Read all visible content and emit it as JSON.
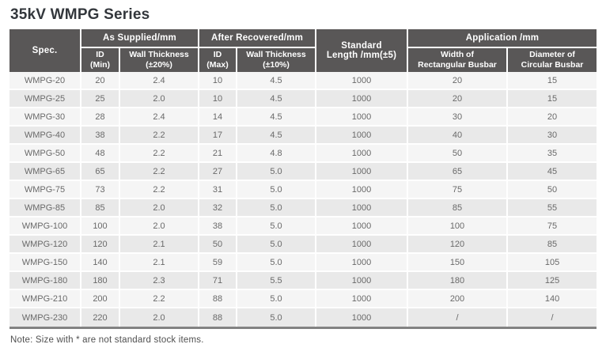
{
  "title": "35kV WMPG Series",
  "note": "Note: Size with * are not standard stock items.",
  "colors": {
    "header_bg": "#595757",
    "header_text": "#ffffff",
    "row_light": "#f5f5f5",
    "row_alt": "#e9e9e9",
    "bottom_border": "#828282",
    "body_text": "#696969",
    "title_text": "#33373c"
  },
  "table": {
    "spec_header": "Spec.",
    "groups": [
      {
        "label": "As Supplied/mm"
      },
      {
        "label": "After Recovered/mm"
      },
      {
        "label": "Standard\nLength /mm(±5)"
      },
      {
        "label": "Application /mm"
      }
    ],
    "subheaders": [
      "ID\n(Min)",
      "Wall Thickness\n(±20%)",
      "ID\n(Max)",
      "Wall Thickness\n(±10%)",
      "Width of\nRectangular Busbar",
      "Diameter of\nCircular Busbar"
    ],
    "rows": [
      [
        "WMPG-20",
        "20",
        "2.4",
        "10",
        "4.5",
        "1000",
        "20",
        "15"
      ],
      [
        "WMPG-25",
        "25",
        "2.0",
        "10",
        "4.5",
        "1000",
        "20",
        "15"
      ],
      [
        "WMPG-30",
        "28",
        "2.4",
        "14",
        "4.5",
        "1000",
        "30",
        "20"
      ],
      [
        "WMPG-40",
        "38",
        "2.2",
        "17",
        "4.5",
        "1000",
        "40",
        "30"
      ],
      [
        "WMPG-50",
        "48",
        "2.2",
        "21",
        "4.8",
        "1000",
        "50",
        "35"
      ],
      [
        "WMPG-65",
        "65",
        "2.2",
        "27",
        "5.0",
        "1000",
        "65",
        "45"
      ],
      [
        "WMPG-75",
        "73",
        "2.2",
        "31",
        "5.0",
        "1000",
        "75",
        "50"
      ],
      [
        "WMPG-85",
        "85",
        "2.0",
        "32",
        "5.0",
        "1000",
        "85",
        "55"
      ],
      [
        "WMPG-100",
        "100",
        "2.0",
        "38",
        "5.0",
        "1000",
        "100",
        "75"
      ],
      [
        "WMPG-120",
        "120",
        "2.1",
        "50",
        "5.0",
        "1000",
        "120",
        "85"
      ],
      [
        "WMPG-150",
        "140",
        "2.1",
        "59",
        "5.0",
        "1000",
        "150",
        "105"
      ],
      [
        "WMPG-180",
        "180",
        "2.3",
        "71",
        "5.5",
        "1000",
        "180",
        "125"
      ],
      [
        "WMPG-210",
        "200",
        "2.2",
        "88",
        "5.0",
        "1000",
        "200",
        "140"
      ],
      [
        "WMPG-230",
        "220",
        "2.0",
        "88",
        "5.0",
        "1000",
        "/",
        "/"
      ]
    ]
  }
}
